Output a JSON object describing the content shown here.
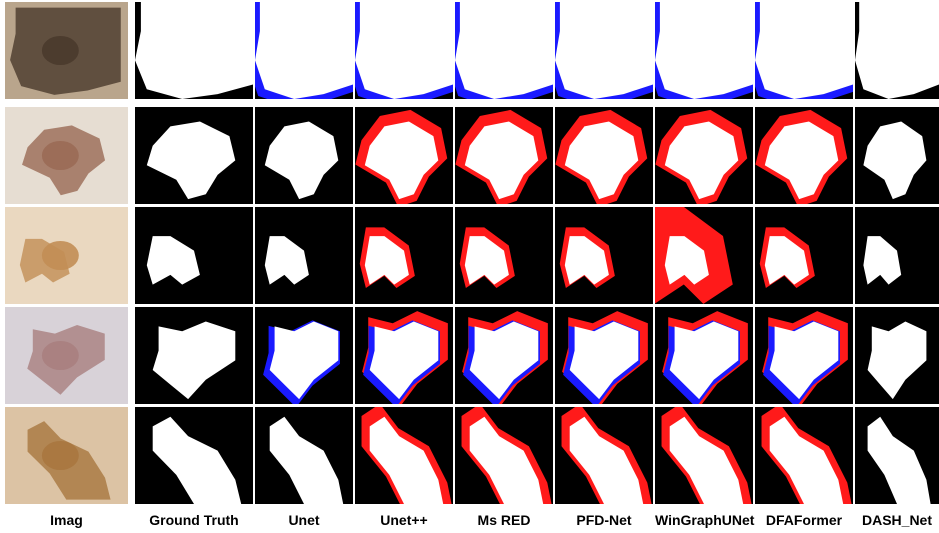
{
  "columns": [
    "Imag",
    "Ground Truth",
    "Unet",
    "Unet++",
    "Ms RED",
    "PFD-Net",
    "WinGraphUNet",
    "DFAFormer",
    "DASH_Net"
  ]
}
